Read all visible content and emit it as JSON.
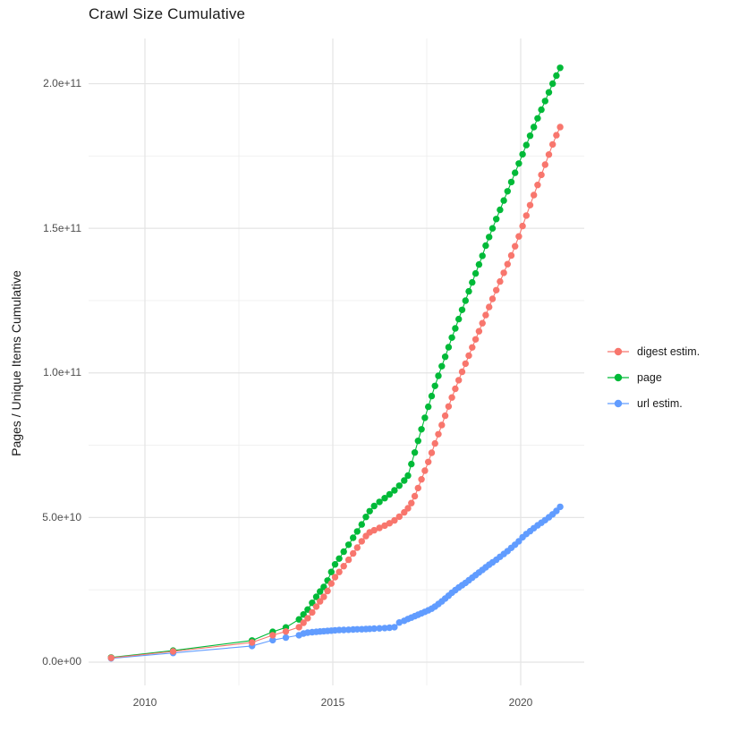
{
  "chart_data": {
    "type": "line",
    "title": "Crawl Size Cumulative",
    "ylabel": "Pages / Unique Items Cumulative",
    "xlabel": "",
    "legend_position": "right",
    "grid": true,
    "background": "#ffffff",
    "value_unit": "1e9 (point values and y tick values are in billions of pages / unique items)",
    "x_range_years": [
      2008.5,
      2021.7
    ],
    "y_range_billions": [
      0,
      215
    ],
    "x_ticks": [
      {
        "value": 2010,
        "label": "2010"
      },
      {
        "value": 2015,
        "label": "2015"
      },
      {
        "value": 2020,
        "label": "2020"
      }
    ],
    "x_minor_ticks": [
      2012.5,
      2017.5
    ],
    "y_ticks": [
      {
        "value": 0,
        "label": "0.0e+00"
      },
      {
        "value": 50,
        "label": "5.0e+10"
      },
      {
        "value": 100,
        "label": "1.0e+11"
      },
      {
        "value": 150,
        "label": "1.5e+11"
      },
      {
        "value": 200,
        "label": "2.0e+11"
      }
    ],
    "y_minor_ticks": [
      25,
      75,
      125,
      175
    ],
    "series": [
      {
        "name": "digest estim.",
        "color": "#F8766D",
        "points": [
          [
            2009.1,
            1.5
          ],
          [
            2010.75,
            3.7
          ],
          [
            2012.85,
            6.8
          ],
          [
            2013.4,
            9.3
          ],
          [
            2013.75,
            10.6
          ],
          [
            2014.1,
            12.1
          ],
          [
            2014.22,
            13.6
          ],
          [
            2014.33,
            15.2
          ],
          [
            2014.45,
            17.2
          ],
          [
            2014.56,
            19.2
          ],
          [
            2014.66,
            21
          ],
          [
            2014.76,
            22.6
          ],
          [
            2014.86,
            24.6
          ],
          [
            2014.96,
            27.2
          ],
          [
            2015.06,
            29.4
          ],
          [
            2015.17,
            31.2
          ],
          [
            2015.29,
            33.2
          ],
          [
            2015.42,
            35.4
          ],
          [
            2015.54,
            37.6
          ],
          [
            2015.65,
            39.6
          ],
          [
            2015.77,
            41.8
          ],
          [
            2015.88,
            43.6
          ],
          [
            2015.98,
            44.9
          ],
          [
            2016.1,
            45.6
          ],
          [
            2016.24,
            46.4
          ],
          [
            2016.38,
            47.2
          ],
          [
            2016.51,
            48
          ],
          [
            2016.64,
            49
          ],
          [
            2016.77,
            50.3
          ],
          [
            2016.9,
            51.8
          ],
          [
            2017,
            53.2
          ],
          [
            2017.09,
            55
          ],
          [
            2017.18,
            57.4
          ],
          [
            2017.27,
            60.2
          ],
          [
            2017.36,
            63.2
          ],
          [
            2017.45,
            66.2
          ],
          [
            2017.54,
            69.2
          ],
          [
            2017.63,
            72.4
          ],
          [
            2017.72,
            75.6
          ],
          [
            2017.81,
            78.8
          ],
          [
            2017.9,
            82
          ],
          [
            2017.99,
            85.2
          ],
          [
            2018.08,
            88.4
          ],
          [
            2018.17,
            91.5
          ],
          [
            2018.26,
            94.5
          ],
          [
            2018.35,
            97.5
          ],
          [
            2018.44,
            100.4
          ],
          [
            2018.53,
            103.2
          ],
          [
            2018.62,
            106
          ],
          [
            2018.71,
            108.8
          ],
          [
            2018.8,
            111.6
          ],
          [
            2018.89,
            114.4
          ],
          [
            2018.98,
            117.2
          ],
          [
            2019.07,
            120
          ],
          [
            2019.16,
            122.8
          ],
          [
            2019.25,
            125.6
          ],
          [
            2019.35,
            128.6
          ],
          [
            2019.45,
            131.6
          ],
          [
            2019.55,
            134.6
          ],
          [
            2019.65,
            137.6
          ],
          [
            2019.75,
            140.6
          ],
          [
            2019.85,
            143.8
          ],
          [
            2019.95,
            147.2
          ],
          [
            2020.05,
            150.8
          ],
          [
            2020.15,
            154.4
          ],
          [
            2020.25,
            158
          ],
          [
            2020.35,
            161.5
          ],
          [
            2020.45,
            165
          ],
          [
            2020.55,
            168.5
          ],
          [
            2020.65,
            172
          ],
          [
            2020.75,
            175.5
          ],
          [
            2020.85,
            179
          ],
          [
            2020.95,
            182.2
          ],
          [
            2021.05,
            185
          ]
        ]
      },
      {
        "name": "page",
        "color": "#00BA38",
        "points": [
          [
            2009.1,
            1.6
          ],
          [
            2010.75,
            4
          ],
          [
            2012.85,
            7.5
          ],
          [
            2013.4,
            10.5
          ],
          [
            2013.75,
            12
          ],
          [
            2014.1,
            14.8
          ],
          [
            2014.22,
            16.5
          ],
          [
            2014.33,
            18.2
          ],
          [
            2014.45,
            20.5
          ],
          [
            2014.56,
            22.6
          ],
          [
            2014.66,
            24.4
          ],
          [
            2014.76,
            26
          ],
          [
            2014.86,
            28.2
          ],
          [
            2014.96,
            31.2
          ],
          [
            2015.06,
            33.8
          ],
          [
            2015.17,
            35.8
          ],
          [
            2015.29,
            38.2
          ],
          [
            2015.42,
            40.6
          ],
          [
            2015.54,
            43
          ],
          [
            2015.65,
            45.2
          ],
          [
            2015.77,
            47.6
          ],
          [
            2015.88,
            50.2
          ],
          [
            2015.98,
            52.2
          ],
          [
            2016.1,
            54
          ],
          [
            2016.24,
            55.4
          ],
          [
            2016.38,
            56.7
          ],
          [
            2016.51,
            58
          ],
          [
            2016.64,
            59.4
          ],
          [
            2016.77,
            61
          ],
          [
            2016.9,
            62.8
          ],
          [
            2017,
            64.5
          ],
          [
            2017.09,
            68.5
          ],
          [
            2017.18,
            72.5
          ],
          [
            2017.27,
            76.5
          ],
          [
            2017.36,
            80.5
          ],
          [
            2017.45,
            84.5
          ],
          [
            2017.54,
            88.3
          ],
          [
            2017.63,
            92
          ],
          [
            2017.72,
            95.5
          ],
          [
            2017.81,
            99
          ],
          [
            2017.9,
            102.3
          ],
          [
            2017.99,
            105.6
          ],
          [
            2018.08,
            108.9
          ],
          [
            2018.17,
            112.2
          ],
          [
            2018.26,
            115.4
          ],
          [
            2018.35,
            118.6
          ],
          [
            2018.44,
            121.8
          ],
          [
            2018.53,
            125
          ],
          [
            2018.62,
            128.2
          ],
          [
            2018.71,
            131.3
          ],
          [
            2018.8,
            134.4
          ],
          [
            2018.89,
            137.5
          ],
          [
            2018.98,
            140.5
          ],
          [
            2019.07,
            144
          ],
          [
            2019.16,
            147
          ],
          [
            2019.25,
            150
          ],
          [
            2019.35,
            153.2
          ],
          [
            2019.45,
            156.4
          ],
          [
            2019.55,
            159.6
          ],
          [
            2019.65,
            162.8
          ],
          [
            2019.75,
            166
          ],
          [
            2019.85,
            169.2
          ],
          [
            2019.95,
            172.4
          ],
          [
            2020.05,
            175.6
          ],
          [
            2020.15,
            178.8
          ],
          [
            2020.25,
            182
          ],
          [
            2020.35,
            185
          ],
          [
            2020.45,
            188
          ],
          [
            2020.55,
            191
          ],
          [
            2020.65,
            194
          ],
          [
            2020.75,
            197
          ],
          [
            2020.85,
            200
          ],
          [
            2020.95,
            202.8
          ],
          [
            2021.05,
            205.5
          ]
        ]
      },
      {
        "name": "url estim.",
        "color": "#619CFF",
        "points": [
          [
            2009.1,
            1.3
          ],
          [
            2010.75,
            3.2
          ],
          [
            2012.85,
            5.6
          ],
          [
            2013.4,
            7.6
          ],
          [
            2013.75,
            8.5
          ],
          [
            2014.1,
            9.3
          ],
          [
            2014.22,
            9.9
          ],
          [
            2014.33,
            10.2
          ],
          [
            2014.45,
            10.35
          ],
          [
            2014.56,
            10.5
          ],
          [
            2014.66,
            10.6
          ],
          [
            2014.76,
            10.7
          ],
          [
            2014.86,
            10.8
          ],
          [
            2014.96,
            10.9
          ],
          [
            2015.06,
            11
          ],
          [
            2015.17,
            11.1
          ],
          [
            2015.29,
            11.15
          ],
          [
            2015.42,
            11.2
          ],
          [
            2015.54,
            11.3
          ],
          [
            2015.65,
            11.35
          ],
          [
            2015.77,
            11.4
          ],
          [
            2015.88,
            11.45
          ],
          [
            2015.98,
            11.5
          ],
          [
            2016.1,
            11.6
          ],
          [
            2016.24,
            11.7
          ],
          [
            2016.38,
            11.8
          ],
          [
            2016.51,
            11.9
          ],
          [
            2016.64,
            12.1
          ],
          [
            2016.77,
            13.7
          ],
          [
            2016.9,
            14.3
          ],
          [
            2017,
            14.9
          ],
          [
            2017.09,
            15.4
          ],
          [
            2017.18,
            15.9
          ],
          [
            2017.27,
            16.4
          ],
          [
            2017.36,
            16.9
          ],
          [
            2017.45,
            17.4
          ],
          [
            2017.54,
            17.9
          ],
          [
            2017.63,
            18.5
          ],
          [
            2017.72,
            19.2
          ],
          [
            2017.81,
            20.1
          ],
          [
            2017.9,
            21
          ],
          [
            2017.99,
            22
          ],
          [
            2018.08,
            23
          ],
          [
            2018.17,
            24
          ],
          [
            2018.26,
            24.9
          ],
          [
            2018.35,
            25.8
          ],
          [
            2018.44,
            26.6
          ],
          [
            2018.53,
            27.4
          ],
          [
            2018.62,
            28.3
          ],
          [
            2018.71,
            29.2
          ],
          [
            2018.8,
            30.1
          ],
          [
            2018.89,
            31
          ],
          [
            2018.98,
            31.9
          ],
          [
            2019.07,
            32.8
          ],
          [
            2019.16,
            33.7
          ],
          [
            2019.25,
            34.5
          ],
          [
            2019.35,
            35.4
          ],
          [
            2019.45,
            36.4
          ],
          [
            2019.55,
            37.4
          ],
          [
            2019.65,
            38.4
          ],
          [
            2019.75,
            39.5
          ],
          [
            2019.85,
            40.6
          ],
          [
            2019.95,
            41.8
          ],
          [
            2020.05,
            43.2
          ],
          [
            2020.15,
            44.3
          ],
          [
            2020.25,
            45.3
          ],
          [
            2020.35,
            46.3
          ],
          [
            2020.45,
            47.3
          ],
          [
            2020.55,
            48.2
          ],
          [
            2020.65,
            49.1
          ],
          [
            2020.75,
            50.1
          ],
          [
            2020.85,
            51.1
          ],
          [
            2020.95,
            52.3
          ],
          [
            2021.05,
            53.7
          ]
        ]
      }
    ],
    "style": {
      "major_grid_color": "#e4e4e4",
      "minor_grid_color": "#efefef",
      "axis_text_color": "#4d4d4d",
      "title_color": "#1a1a1a",
      "point_radius_px": 3.7
    }
  }
}
